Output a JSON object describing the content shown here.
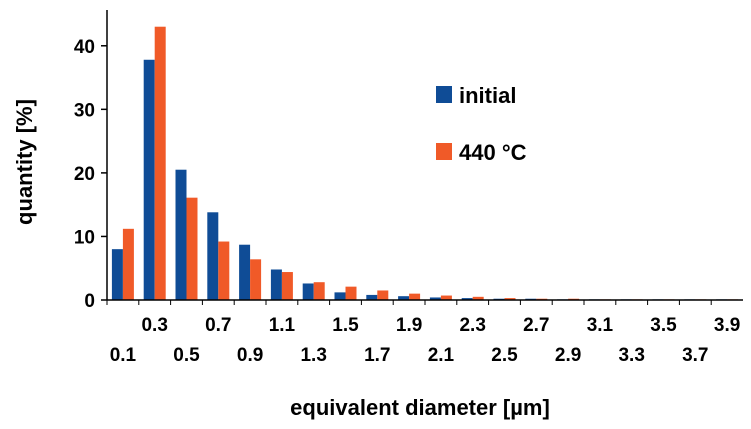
{
  "chart_data": {
    "type": "bar",
    "title": "",
    "xlabel": "equivalent diameter [µm]",
    "ylabel": "quantity [%]",
    "ylim": [
      0,
      45
    ],
    "yticks": [
      "0",
      "10",
      "20",
      "30",
      "40"
    ],
    "categories": [
      "0.1",
      "0.3",
      "0.5",
      "0.7",
      "0.9",
      "1.1",
      "1.3",
      "1.5",
      "1.7",
      "1.9",
      "2.1",
      "2.3",
      "2.5",
      "2.7",
      "2.9",
      "3.1",
      "3.3",
      "3.5",
      "3.7",
      "3.9"
    ],
    "series": [
      {
        "name": "initial",
        "color": "#0f4c96",
        "values": [
          8.0,
          37.8,
          20.5,
          13.8,
          8.7,
          4.8,
          2.6,
          1.2,
          0.8,
          0.6,
          0.4,
          0.3,
          0.2,
          0.2,
          0.1,
          0.1,
          0.1,
          0.1,
          0.1,
          0.1
        ]
      },
      {
        "name": "440 °C",
        "color": "#f05a28",
        "values": [
          11.2,
          43.0,
          16.1,
          9.2,
          6.4,
          4.4,
          2.8,
          2.1,
          1.5,
          1.0,
          0.7,
          0.5,
          0.3,
          0.2,
          0.2,
          0.1,
          0.1,
          0.1,
          0.1,
          0.1
        ]
      }
    ],
    "legend": "top-right"
  }
}
